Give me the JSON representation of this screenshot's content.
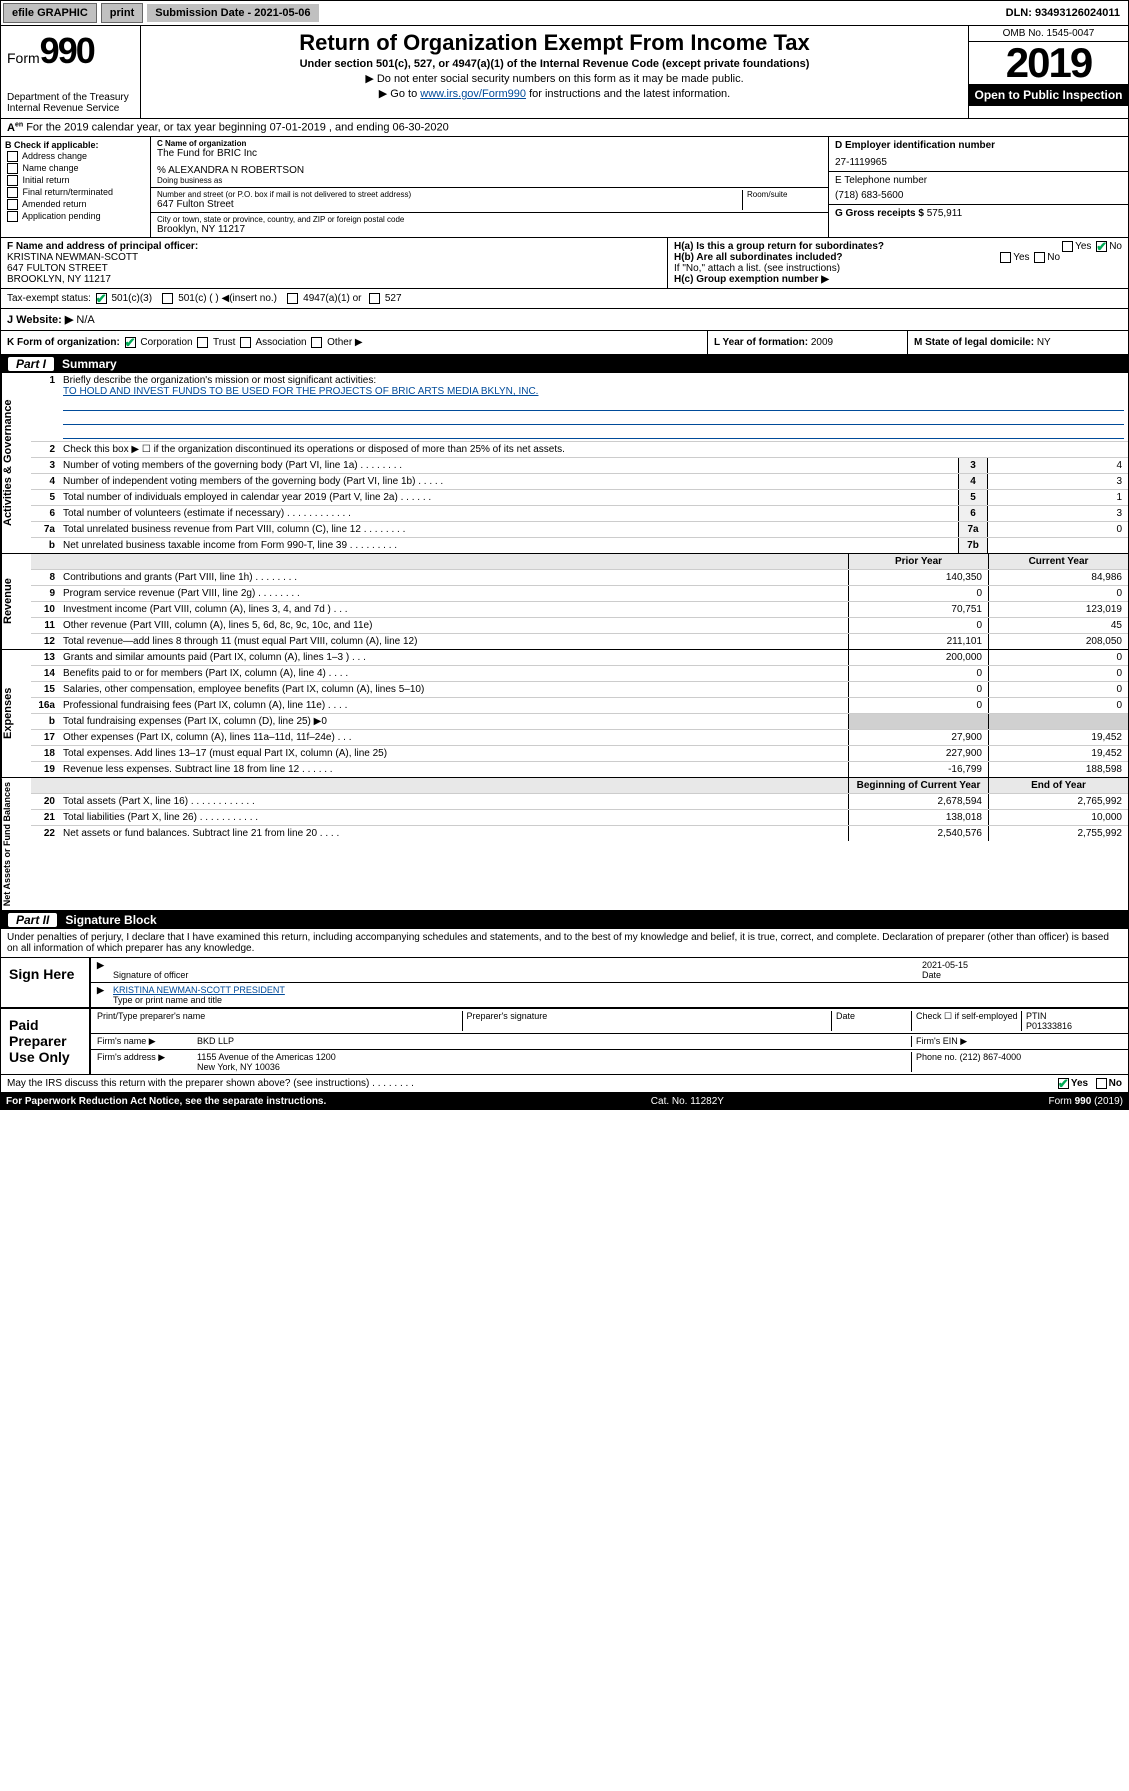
{
  "topbar": {
    "efile": "efile GRAPHIC",
    "print": "print",
    "submission": "Submission Date - 2021-05-06",
    "dln": "DLN: 93493126024011"
  },
  "header": {
    "form_prefix": "Form",
    "form_num": "990",
    "dept": "Department of the Treasury",
    "irs": "Internal Revenue Service",
    "title": "Return of Organization Exempt From Income Tax",
    "subtitle": "Under section 501(c), 527, or 4947(a)(1) of the Internal Revenue Code (except private foundations)",
    "note1": "▶ Do not enter social security numbers on this form as it may be made public.",
    "note2_pre": "▶ Go to ",
    "note2_link": "www.irs.gov/Form990",
    "note2_post": " for instructions and the latest information.",
    "omb": "OMB No. 1545-0047",
    "year": "2019",
    "open": "Open to Public Inspection"
  },
  "row_a": "For the 2019 calendar year, or tax year beginning 07-01-2019    , and ending 06-30-2020",
  "box_b": {
    "title": "B Check if applicable:",
    "items": [
      "Address change",
      "Name change",
      "Initial return",
      "Final return/terminated",
      "Amended return",
      "Application pending"
    ]
  },
  "box_c": {
    "name_lbl": "C Name of organization",
    "name": "The Fund for BRIC Inc",
    "care_of": "% ALEXANDRA N ROBERTSON",
    "dba_lbl": "Doing business as",
    "addr_lbl": "Number and street (or P.O. box if mail is not delivered to street address)",
    "room_lbl": "Room/suite",
    "addr": "647 Fulton Street",
    "city_lbl": "City or town, state or province, country, and ZIP or foreign postal code",
    "city": "Brooklyn, NY  11217"
  },
  "box_d": {
    "lbl": "D Employer identification number",
    "val": "27-1119965"
  },
  "box_e": {
    "lbl": "E Telephone number",
    "val": "(718) 683-5600"
  },
  "box_g": {
    "lbl": "G Gross receipts $",
    "val": "575,911"
  },
  "box_f": {
    "lbl": "F Name and address of principal officer:",
    "name": "KRISTINA NEWMAN-SCOTT",
    "addr1": "647 FULTON STREET",
    "addr2": "BROOKLYN, NY  11217"
  },
  "box_h": {
    "ha": "H(a) Is this a group return for subordinates?",
    "hb": "H(b) Are all subordinates included?",
    "hb_note": "If \"No,\" attach a list. (see instructions)",
    "hc": "H(c) Group exemption number ▶",
    "yes": "Yes",
    "no": "No"
  },
  "tax_status": {
    "lbl": "Tax-exempt status:",
    "opt1": "501(c)(3)",
    "opt2": "501(c) (   ) ◀(insert no.)",
    "opt3": "4947(a)(1) or",
    "opt4": "527"
  },
  "website": {
    "lbl": "J  Website: ▶",
    "val": "N/A"
  },
  "row_k": {
    "k_lbl": "K Form of organization:",
    "opts": [
      "Corporation",
      "Trust",
      "Association",
      "Other ▶"
    ],
    "l_lbl": "L Year of formation:",
    "l_val": "2009",
    "m_lbl": "M State of legal domicile:",
    "m_val": "NY"
  },
  "part1": {
    "num": "Part I",
    "title": "Summary"
  },
  "summary": {
    "q1": "Briefly describe the organization's mission or most significant activities:",
    "mission": "TO HOLD AND INVEST FUNDS TO BE USED FOR THE PROJECTS OF BRIC ARTS MEDIA BKLYN, INC.",
    "q2": "Check this box ▶ ☐  if the organization discontinued its operations or disposed of more than 25% of its net assets.",
    "lines_single": [
      {
        "n": "3",
        "t": "Number of voting members of the governing body (Part VI, line 1a)  .   .   .   .   .   .   .   .",
        "box": "3",
        "v": "4"
      },
      {
        "n": "4",
        "t": "Number of independent voting members of the governing body (Part VI, line 1b)  .   .   .   .   .",
        "box": "4",
        "v": "3"
      },
      {
        "n": "5",
        "t": "Total number of individuals employed in calendar year 2019 (Part V, line 2a)  .   .   .   .   .   .",
        "box": "5",
        "v": "1"
      },
      {
        "n": "6",
        "t": "Total number of volunteers (estimate if necessary)   .   .   .   .   .   .   .   .   .   .   .   .",
        "box": "6",
        "v": "3"
      },
      {
        "n": "7a",
        "t": "Total unrelated business revenue from Part VIII, column (C), line 12  .   .   .   .   .   .   .   .",
        "box": "7a",
        "v": "0"
      },
      {
        "n": "b",
        "t": "Net unrelated business taxable income from Form 990-T, line 39   .   .   .   .   .   .   .   .   .",
        "box": "7b",
        "v": ""
      }
    ],
    "hdr_prior": "Prior Year",
    "hdr_curr": "Current Year",
    "revenue": [
      {
        "n": "8",
        "t": "Contributions and grants (Part VIII, line 1h)  .   .   .   .   .   .   .   .",
        "p": "140,350",
        "c": "84,986"
      },
      {
        "n": "9",
        "t": "Program service revenue (Part VIII, line 2g)   .   .   .   .   .   .   .   .",
        "p": "0",
        "c": "0"
      },
      {
        "n": "10",
        "t": "Investment income (Part VIII, column (A), lines 3, 4, and 7d )  .   .   .",
        "p": "70,751",
        "c": "123,019"
      },
      {
        "n": "11",
        "t": "Other revenue (Part VIII, column (A), lines 5, 6d, 8c, 9c, 10c, and 11e)",
        "p": "0",
        "c": "45"
      },
      {
        "n": "12",
        "t": "Total revenue—add lines 8 through 11 (must equal Part VIII, column (A), line 12)",
        "p": "211,101",
        "c": "208,050"
      }
    ],
    "expenses": [
      {
        "n": "13",
        "t": "Grants and similar amounts paid (Part IX, column (A), lines 1–3 )  .   .   .",
        "p": "200,000",
        "c": "0"
      },
      {
        "n": "14",
        "t": "Benefits paid to or for members (Part IX, column (A), line 4)  .   .   .   .",
        "p": "0",
        "c": "0"
      },
      {
        "n": "15",
        "t": "Salaries, other compensation, employee benefits (Part IX, column (A), lines 5–10)",
        "p": "0",
        "c": "0"
      },
      {
        "n": "16a",
        "t": "Professional fundraising fees (Part IX, column (A), line 11e)  .   .   .   .",
        "p": "0",
        "c": "0"
      },
      {
        "n": "b",
        "t": "Total fundraising expenses (Part IX, column (D), line 25) ▶0",
        "p": "",
        "c": "",
        "shaded": true
      },
      {
        "n": "17",
        "t": "Other expenses (Part IX, column (A), lines 11a–11d, 11f–24e)  .   .   .",
        "p": "27,900",
        "c": "19,452"
      },
      {
        "n": "18",
        "t": "Total expenses. Add lines 13–17 (must equal Part IX, column (A), line 25)",
        "p": "227,900",
        "c": "19,452"
      },
      {
        "n": "19",
        "t": "Revenue less expenses. Subtract line 18 from line 12  .   .   .   .   .   .",
        "p": "-16,799",
        "c": "188,598"
      }
    ],
    "hdr_beg": "Beginning of Current Year",
    "hdr_end": "End of Year",
    "netassets": [
      {
        "n": "20",
        "t": "Total assets (Part X, line 16)  .   .   .   .   .   .   .   .   .   .   .   .",
        "p": "2,678,594",
        "c": "2,765,992"
      },
      {
        "n": "21",
        "t": "Total liabilities (Part X, line 26)  .   .   .   .   .   .   .   .   .   .   .",
        "p": "138,018",
        "c": "10,000"
      },
      {
        "n": "22",
        "t": "Net assets or fund balances. Subtract line 21 from line 20  .   .   .   .",
        "p": "2,540,576",
        "c": "2,755,992"
      }
    ],
    "vtab_gov": "Activities & Governance",
    "vtab_rev": "Revenue",
    "vtab_exp": "Expenses",
    "vtab_net": "Net Assets or Fund Balances"
  },
  "part2": {
    "num": "Part II",
    "title": "Signature Block"
  },
  "sig": {
    "perjury": "Under penalties of perjury, I declare that I have examined this return, including accompanying schedules and statements, and to the best of my knowledge and belief, it is true, correct, and complete. Declaration of preparer (other than officer) is based on all information of which preparer has any knowledge.",
    "sign_here": "Sign Here",
    "date": "2021-05-15",
    "sig_lbl": "Signature of officer",
    "date_lbl": "Date",
    "name": "KRISTINA NEWMAN-SCOTT PRESIDENT",
    "name_lbl": "Type or print name and title",
    "paid": "Paid Preparer Use Only",
    "prep_name_lbl": "Print/Type preparer's name",
    "prep_sig_lbl": "Preparer's signature",
    "prep_date_lbl": "Date",
    "check_lbl": "Check ☐ if self-employed",
    "ptin_lbl": "PTIN",
    "ptin": "P01333816",
    "firm_name_lbl": "Firm's name    ▶",
    "firm_name": "BKD LLP",
    "firm_ein_lbl": "Firm's EIN ▶",
    "firm_addr_lbl": "Firm's address ▶",
    "firm_addr1": "1155 Avenue of the Americas 1200",
    "firm_addr2": "New York, NY  10036",
    "phone_lbl": "Phone no.",
    "phone": "(212) 867-4000"
  },
  "footer": {
    "discuss": "May the IRS discuss this return with the preparer shown above? (see instructions)   .   .   .   .   .   .   .   .",
    "yes": "Yes",
    "no": "No",
    "paperwork": "For Paperwork Reduction Act Notice, see the separate instructions.",
    "cat": "Cat. No. 11282Y",
    "form": "Form 990 (2019)"
  },
  "colors": {
    "link": "#004b9a",
    "check": "#00aa55"
  }
}
